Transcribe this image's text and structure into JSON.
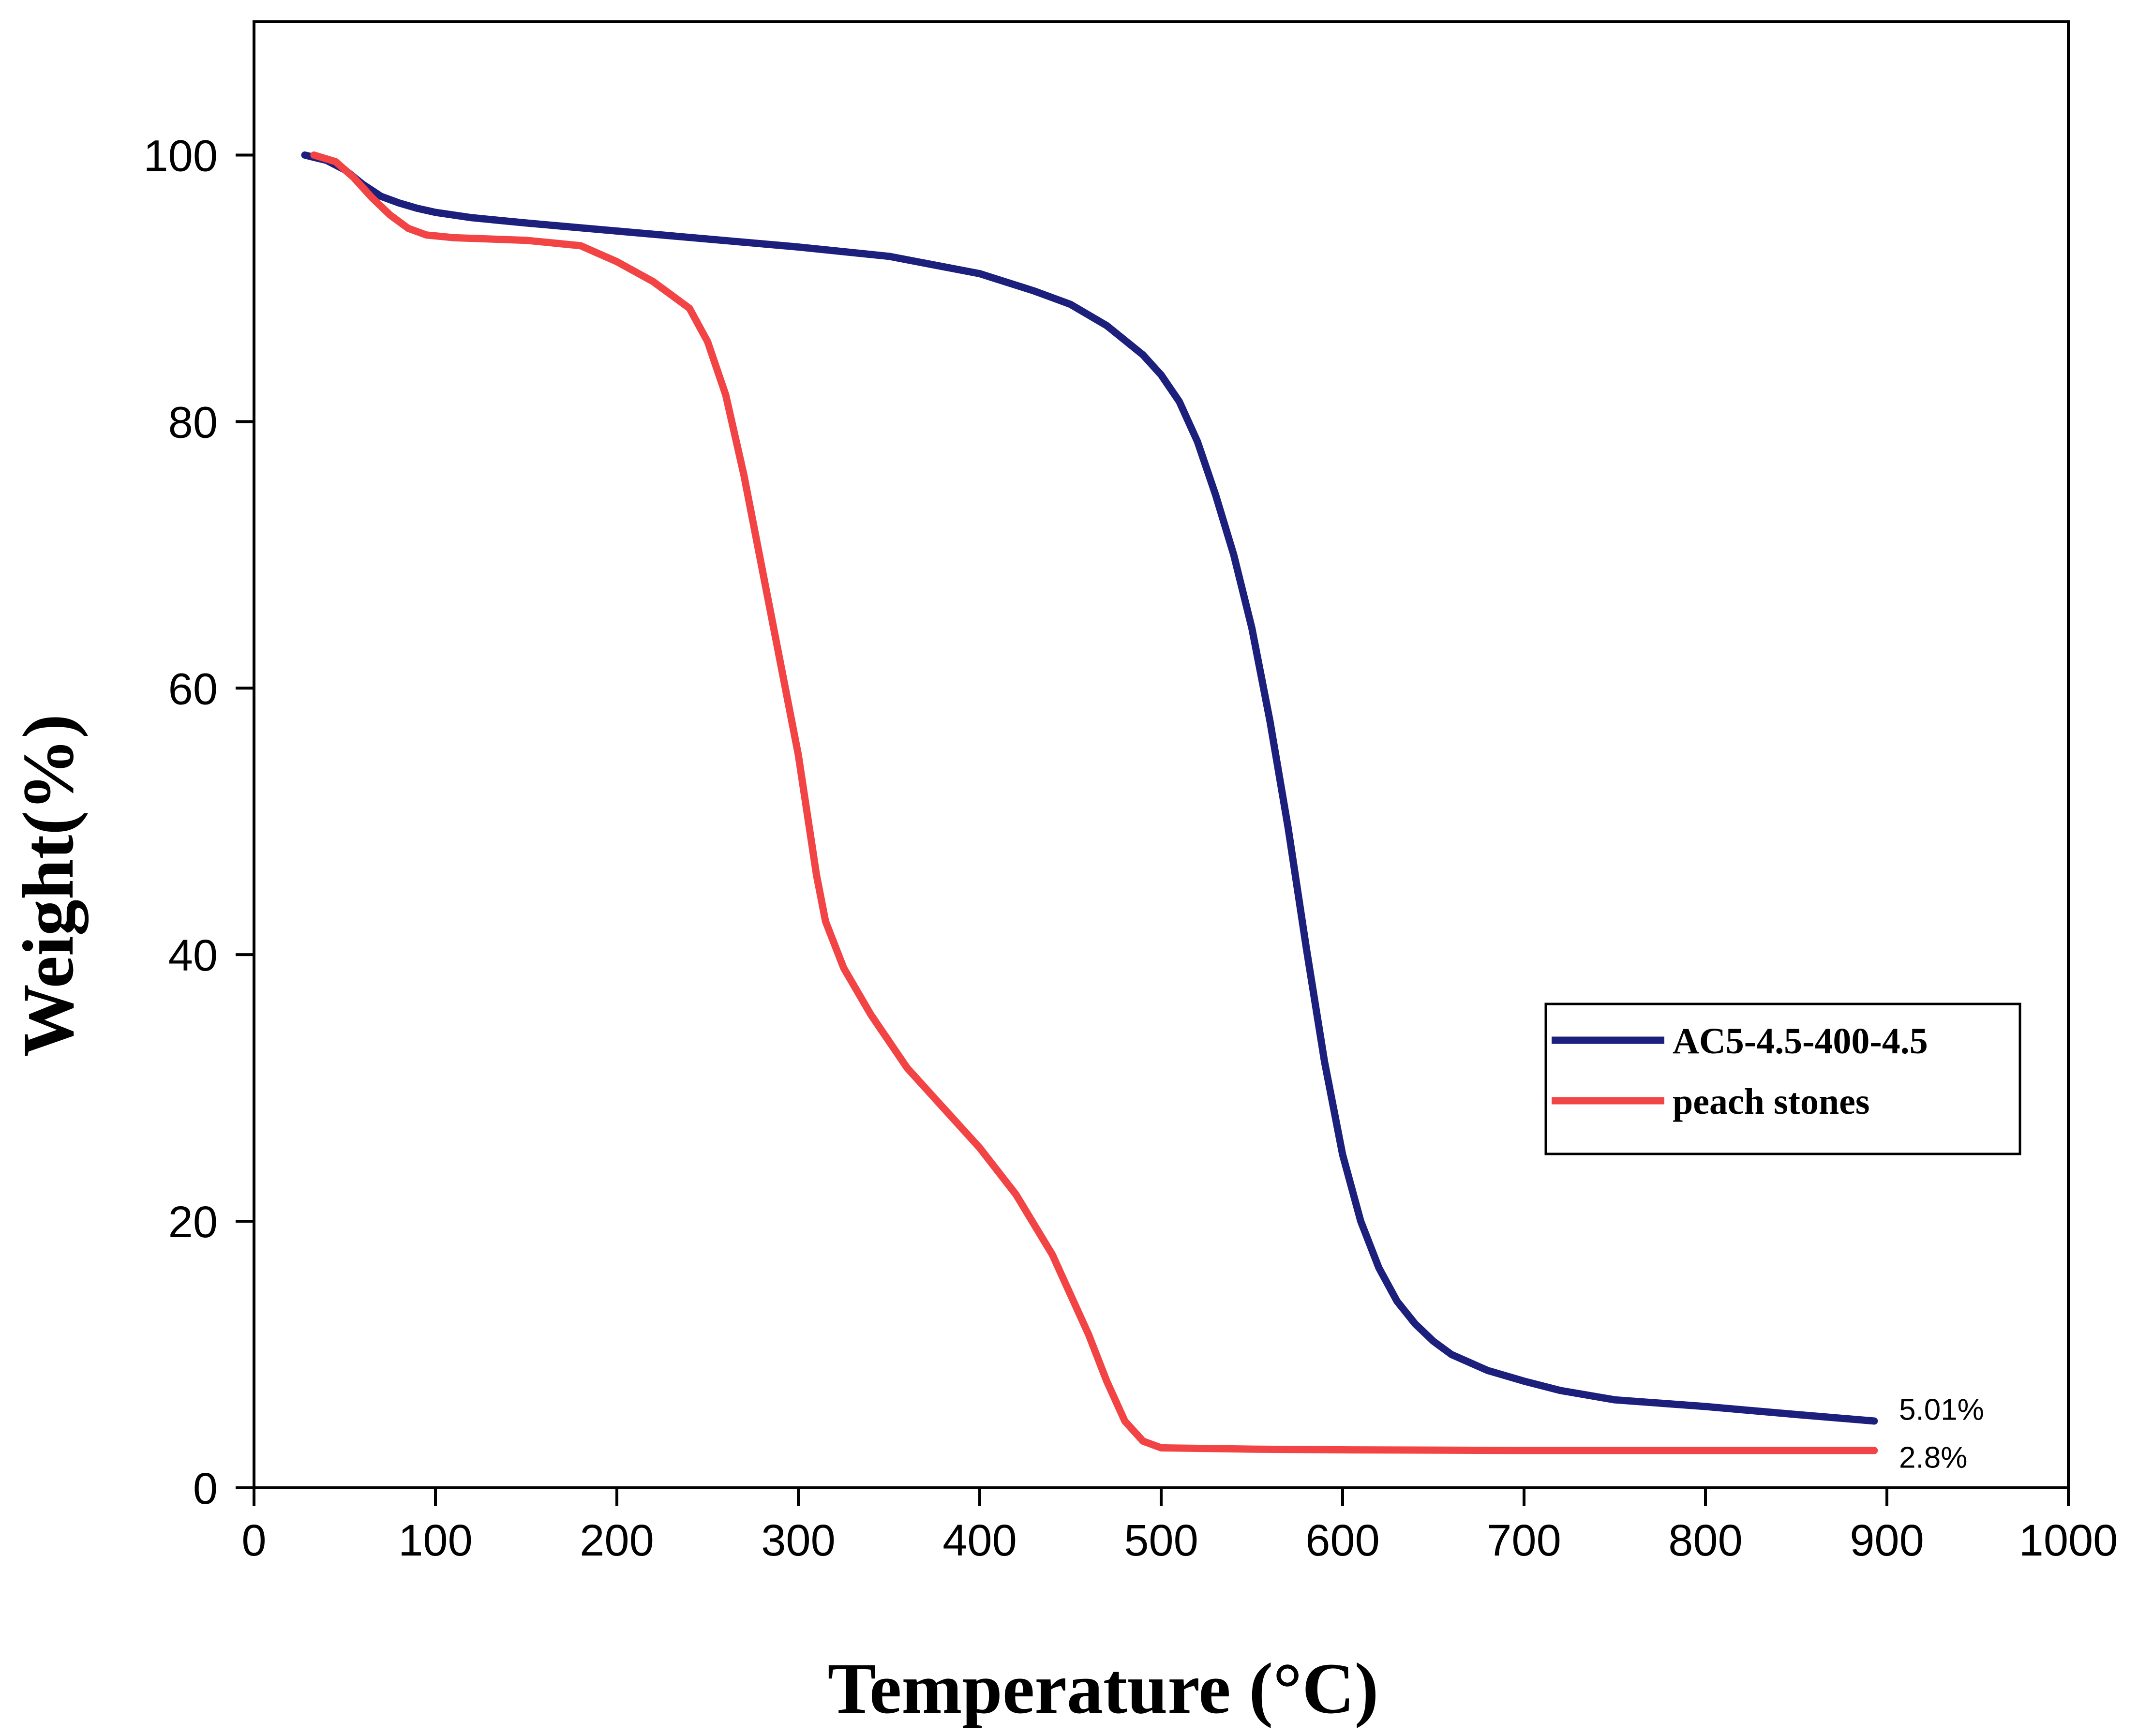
{
  "chart_data": {
    "type": "line",
    "title": "",
    "xlabel": "Temperature (°C)",
    "ylabel": "Weight(%)",
    "xlim": [
      0,
      1000
    ],
    "ylim": [
      0,
      110
    ],
    "xticks": [
      0,
      100,
      200,
      300,
      400,
      500,
      600,
      700,
      800,
      900,
      1000
    ],
    "yticks": [
      0,
      20,
      40,
      60,
      80,
      100
    ],
    "grid": false,
    "legend_position": "right-middle",
    "series": [
      {
        "name": "AC5-4.5-400-4.5",
        "color": "#1c1f7c",
        "points": [
          [
            28,
            100
          ],
          [
            40,
            99.6
          ],
          [
            50,
            98.9
          ],
          [
            60,
            97.8
          ],
          [
            70,
            96.9
          ],
          [
            80,
            96.4
          ],
          [
            90,
            96.0
          ],
          [
            100,
            95.7
          ],
          [
            120,
            95.3
          ],
          [
            150,
            94.9
          ],
          [
            200,
            94.3
          ],
          [
            250,
            93.7
          ],
          [
            300,
            93.1
          ],
          [
            350,
            92.4
          ],
          [
            400,
            91.1
          ],
          [
            430,
            89.8
          ],
          [
            450,
            88.8
          ],
          [
            470,
            87.2
          ],
          [
            490,
            85.0
          ],
          [
            500,
            83.5
          ],
          [
            510,
            81.5
          ],
          [
            520,
            78.5
          ],
          [
            530,
            74.5
          ],
          [
            540,
            70.0
          ],
          [
            550,
            64.5
          ],
          [
            560,
            57.5
          ],
          [
            570,
            49.5
          ],
          [
            580,
            40.5
          ],
          [
            590,
            32.0
          ],
          [
            600,
            25.0
          ],
          [
            610,
            20.0
          ],
          [
            620,
            16.5
          ],
          [
            630,
            14.0
          ],
          [
            640,
            12.3
          ],
          [
            650,
            11.0
          ],
          [
            660,
            10.0
          ],
          [
            680,
            8.8
          ],
          [
            700,
            8.0
          ],
          [
            720,
            7.3
          ],
          [
            750,
            6.6
          ],
          [
            800,
            6.1
          ],
          [
            850,
            5.5
          ],
          [
            893,
            5.01
          ]
        ]
      },
      {
        "name": "peach stones",
        "color": "#f24444",
        "points": [
          [
            33,
            100
          ],
          [
            45,
            99.5
          ],
          [
            55,
            98.3
          ],
          [
            65,
            96.8
          ],
          [
            75,
            95.5
          ],
          [
            85,
            94.5
          ],
          [
            95,
            94.0
          ],
          [
            110,
            93.8
          ],
          [
            150,
            93.6
          ],
          [
            180,
            93.2
          ],
          [
            200,
            92.0
          ],
          [
            220,
            90.5
          ],
          [
            240,
            88.5
          ],
          [
            250,
            86.0
          ],
          [
            260,
            82.0
          ],
          [
            270,
            76.0
          ],
          [
            280,
            69.0
          ],
          [
            290,
            62.0
          ],
          [
            300,
            55.0
          ],
          [
            310,
            46.0
          ],
          [
            315,
            42.5
          ],
          [
            325,
            39.0
          ],
          [
            340,
            35.5
          ],
          [
            360,
            31.5
          ],
          [
            380,
            28.5
          ],
          [
            400,
            25.5
          ],
          [
            420,
            22.0
          ],
          [
            440,
            17.5
          ],
          [
            460,
            11.5
          ],
          [
            470,
            8.0
          ],
          [
            480,
            5.0
          ],
          [
            490,
            3.5
          ],
          [
            500,
            3.0
          ],
          [
            550,
            2.9
          ],
          [
            600,
            2.85
          ],
          [
            700,
            2.8
          ],
          [
            800,
            2.8
          ],
          [
            893,
            2.8
          ]
        ]
      }
    ],
    "annotations": [
      {
        "text": "5.01%",
        "x": 900,
        "y": 5.9,
        "series": "AC5-4.5-400-4.5"
      },
      {
        "text": "2.8%",
        "x": 900,
        "y": 2.3,
        "series": "peach stones"
      }
    ]
  }
}
